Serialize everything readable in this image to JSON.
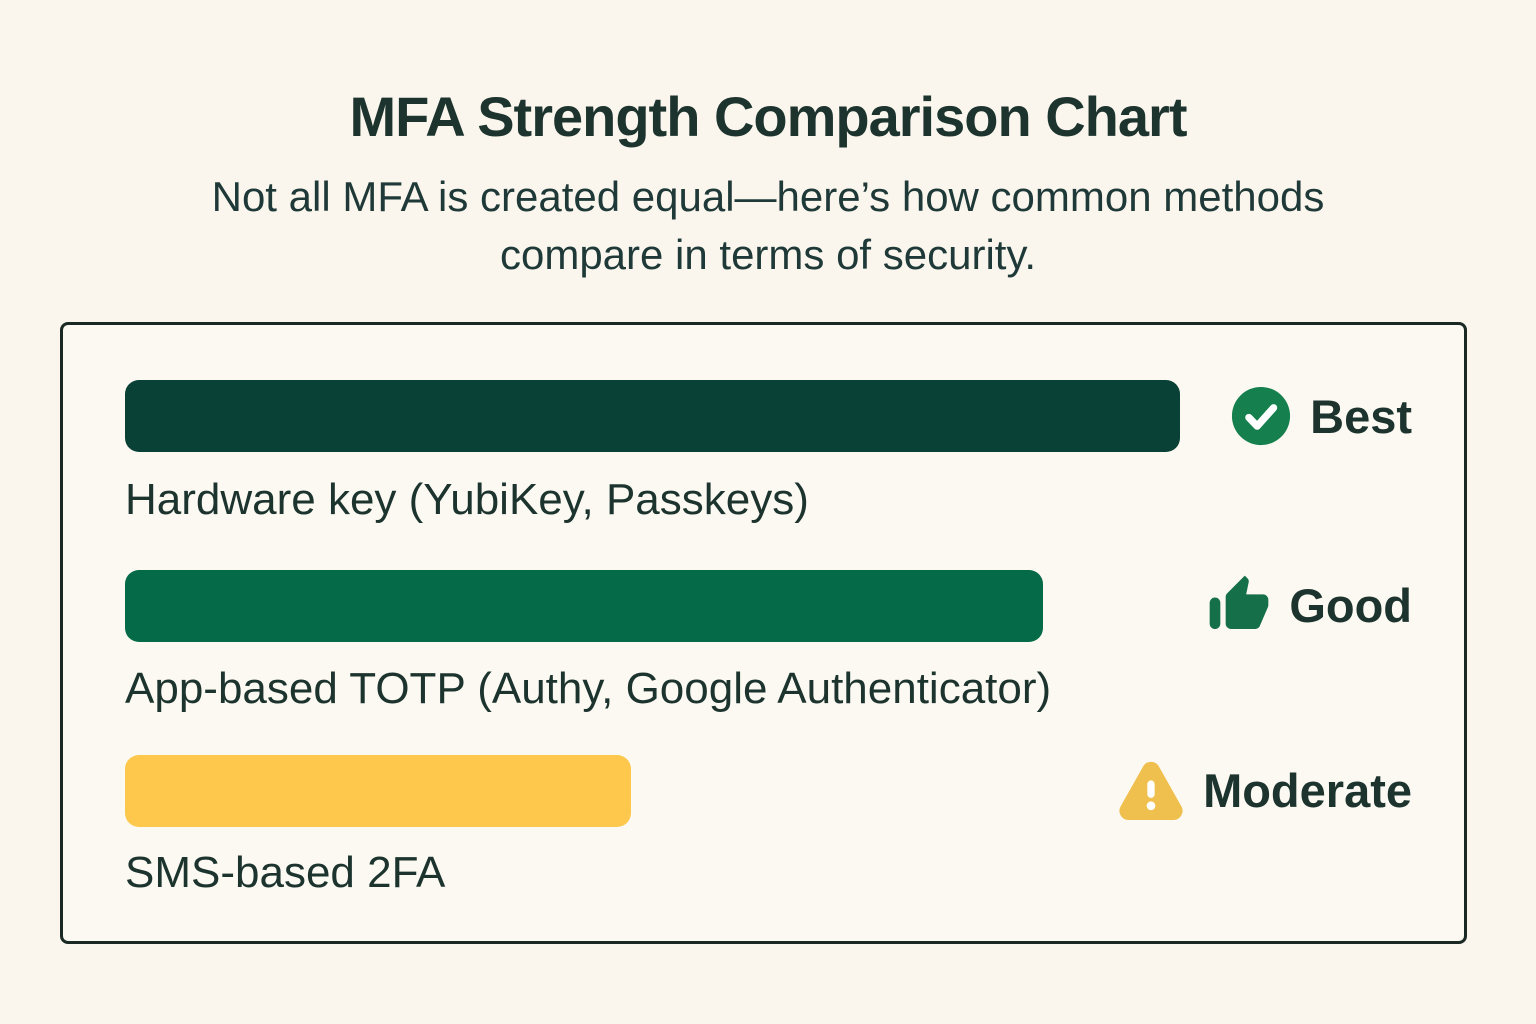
{
  "header": {
    "title": "MFA Strength Comparison Chart",
    "subtitle_line1": "Not all MFA is created equal—here’s how common methods",
    "subtitle_line2": "compare in terms of security."
  },
  "chart_data": {
    "type": "bar",
    "orientation": "horizontal",
    "title": "MFA Strength Comparison Chart",
    "subtitle": "Not all MFA is created equal—here’s how common methods compare in terms of security.",
    "categories": [
      "Hardware key (YubiKey, Passkeys)",
      "App-based TOTP (Authy, Google Authenticator)",
      "SMS-based 2FA"
    ],
    "values": [
      100,
      87,
      48
    ],
    "value_scale": "relative security strength, longest bar = 100",
    "ratings": [
      "Best",
      "Good",
      "Moderate"
    ],
    "rating_icons": [
      "check-circle-icon",
      "thumbs-up-icon",
      "warning-triangle-icon"
    ],
    "bar_colors": [
      "#0A4136",
      "#046A47",
      "#FDC84B"
    ],
    "icon_colors": [
      "#15804E",
      "#15704A",
      "#EFC04E"
    ],
    "legend_position": "right of each bar",
    "grid": false,
    "axes_labels": false
  },
  "colors": {
    "page_background": "#FAF6EE",
    "panel_background": "#FBF9F2",
    "panel_border": "#1A2923",
    "text": "#1C332E"
  }
}
